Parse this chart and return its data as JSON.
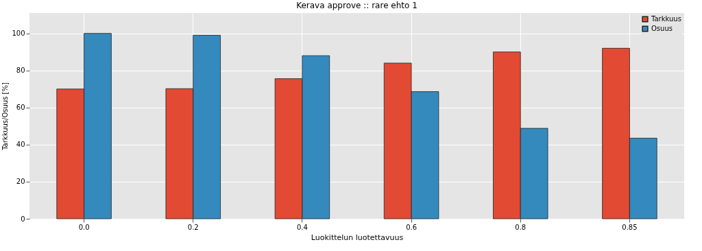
{
  "chart_data": {
    "type": "bar",
    "title": "Kerava approve :: rare ehto 1",
    "xlabel": "Luokittelun luotettavuus",
    "ylabel": "Tarkkuus/Osuus [%]",
    "categories": [
      "0.0",
      "0.2",
      "0.4",
      "0.6",
      "0.8",
      "0.85"
    ],
    "series": [
      {
        "name": "Tarkkuus",
        "color": "#e24a33",
        "values": [
          70,
          70.2,
          75.6,
          84,
          90,
          92
        ]
      },
      {
        "name": "Osuus",
        "color": "#348abd",
        "values": [
          100,
          99,
          88,
          68.6,
          48.8,
          43.5
        ]
      }
    ],
    "ylim": [
      0,
      111
    ],
    "yticks": [
      0,
      20,
      40,
      60,
      80,
      100
    ],
    "grid": true,
    "legend": "top right"
  }
}
